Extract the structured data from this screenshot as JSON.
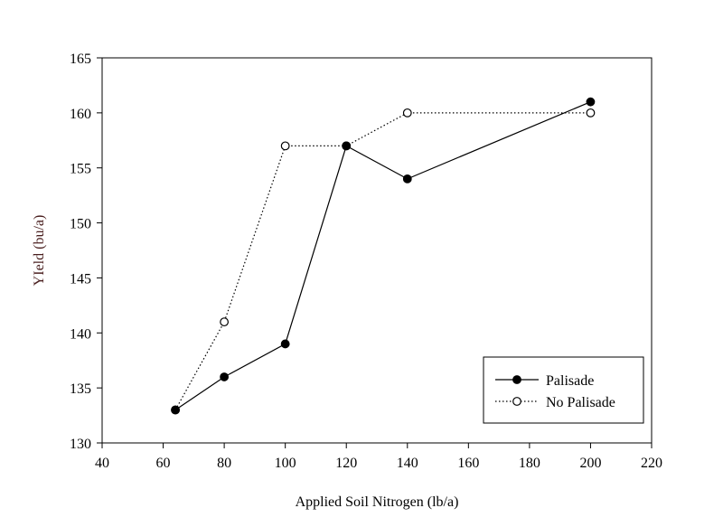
{
  "chart_data": {
    "type": "line",
    "title": "",
    "xlabel": "Applied Soil Nitrogen (lb/a)",
    "ylabel": "YIeld (bu/a)",
    "ylabel_color": "#4a1f1f",
    "xlim": [
      40,
      220
    ],
    "ylim": [
      130,
      165
    ],
    "xticks": [
      40,
      60,
      80,
      100,
      120,
      140,
      160,
      180,
      200,
      220
    ],
    "yticks": [
      130,
      135,
      140,
      145,
      150,
      155,
      160,
      165
    ],
    "grid": false,
    "legend_position": "bottom-right",
    "series": [
      {
        "name": "Palisade",
        "line": "solid",
        "marker": "filled-circle",
        "x": [
          64,
          80,
          100,
          120,
          140,
          200
        ],
        "y": [
          133,
          136,
          139,
          157,
          154,
          161
        ]
      },
      {
        "name": "No Palisade",
        "line": "dotted",
        "marker": "open-circle",
        "x": [
          64,
          80,
          100,
          120,
          140,
          200
        ],
        "y": [
          133,
          141,
          157,
          157,
          160,
          160
        ]
      }
    ]
  }
}
